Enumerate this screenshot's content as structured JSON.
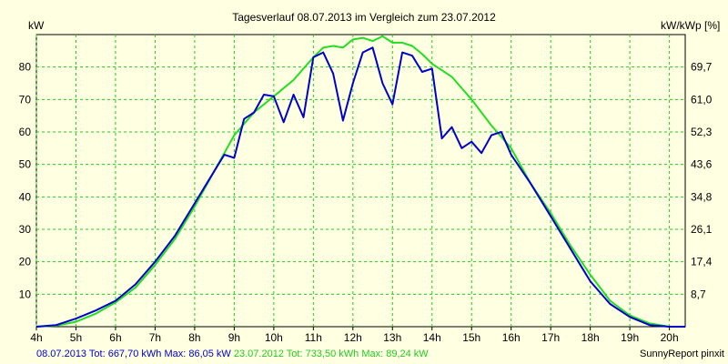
{
  "chart_data": {
    "type": "line",
    "title": "Tagesverlauf 08.07.2013 im Vergleich zum 23.07.2012",
    "ylabel_left": "kW",
    "ylabel_right": "kW/kWp [%]",
    "ylim": [
      0,
      90
    ],
    "xlim": [
      4,
      20.4
    ],
    "x_ticks": [
      "4h",
      "5h",
      "6h",
      "7h",
      "8h",
      "9h",
      "10h",
      "11h",
      "12h",
      "13h",
      "14h",
      "15h",
      "16h",
      "17h",
      "18h",
      "19h",
      "20h"
    ],
    "y_ticks": [
      10,
      20,
      30,
      40,
      50,
      60,
      70,
      80
    ],
    "y_ticks_right": [
      "8,7",
      "17,4",
      "26,1",
      "34,8",
      "43,6",
      "52,3",
      "61,0",
      "69,7"
    ],
    "grid": true,
    "series": [
      {
        "name": "08.07.2013",
        "color": "#0000cc",
        "x": [
          4.0,
          4.5,
          5.0,
          5.5,
          6.0,
          6.5,
          7.0,
          7.5,
          8.0,
          8.5,
          8.75,
          9.0,
          9.25,
          9.5,
          9.75,
          10.0,
          10.25,
          10.5,
          10.75,
          11.0,
          11.25,
          11.5,
          11.75,
          12.0,
          12.25,
          12.5,
          12.75,
          13.0,
          13.25,
          13.5,
          13.75,
          14.0,
          14.25,
          14.5,
          14.75,
          15.0,
          15.25,
          15.5,
          15.75,
          16.0,
          16.5,
          17.0,
          17.5,
          18.0,
          18.5,
          19.0,
          19.5,
          20.0,
          20.4
        ],
        "y": [
          0,
          0.5,
          2.5,
          5,
          8,
          13,
          20,
          28,
          38,
          48,
          53,
          52,
          64,
          66,
          71.5,
          71,
          63,
          71.5,
          64.5,
          83,
          84.5,
          78,
          63.5,
          75,
          84.5,
          86,
          75,
          68.5,
          84.5,
          83.5,
          78.5,
          79.5,
          58,
          61.5,
          55,
          57,
          53.5,
          59,
          60,
          53,
          44,
          34,
          24,
          14,
          7,
          3,
          0.5,
          0,
          0
        ]
      },
      {
        "name": "23.07.2012",
        "color": "#22dd22",
        "x": [
          4.0,
          4.5,
          5.0,
          5.5,
          6.0,
          6.5,
          7.0,
          7.5,
          8.0,
          8.5,
          9.0,
          9.5,
          10.0,
          10.5,
          11.0,
          11.25,
          11.5,
          11.75,
          12.0,
          12.25,
          12.5,
          12.75,
          13.0,
          13.25,
          13.5,
          13.75,
          14.0,
          14.5,
          15.0,
          15.5,
          16.0,
          16.5,
          17.0,
          17.5,
          18.0,
          18.5,
          19.0,
          19.5,
          20.0,
          20.4
        ],
        "y": [
          0,
          0.3,
          1.5,
          4,
          7.5,
          12,
          19,
          27,
          37,
          48,
          59,
          66,
          71,
          76,
          83,
          86,
          86.5,
          86,
          88.5,
          89,
          88,
          89.5,
          87.5,
          87.5,
          86.5,
          84,
          81,
          77,
          70,
          62,
          55,
          44,
          35,
          25,
          16,
          8,
          3.5,
          1,
          0,
          0
        ]
      }
    ]
  },
  "footer": {
    "blue_text": "08.07.2013 Tot: 667,70 kWh Max: 86,05 kW",
    "green_text": "23.07.2012 Tot: 733,50 kWh Max: 89,24 kW",
    "credit": "SunnyReport pinxit"
  }
}
